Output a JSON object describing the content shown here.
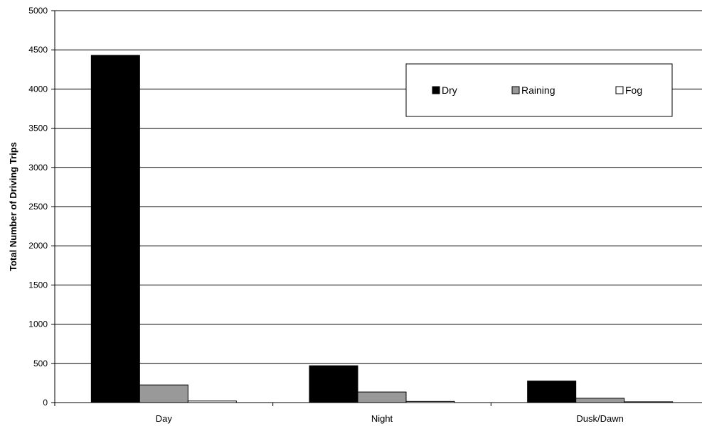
{
  "chart_data": {
    "type": "bar",
    "title": "",
    "xlabel": "",
    "ylabel": "Total Number of Driving Trips",
    "categories": [
      "Day",
      "Night",
      "Dusk/Dawn"
    ],
    "series": [
      {
        "name": "Dry",
        "values": [
          4430,
          470,
          275
        ],
        "color": "#000000"
      },
      {
        "name": "Raining",
        "values": [
          225,
          135,
          55
        ],
        "color": "#999999"
      },
      {
        "name": "Fog",
        "values": [
          20,
          15,
          10
        ],
        "color": "#ffffff"
      }
    ],
    "ylim": [
      0,
      5000
    ],
    "yticks": [
      0,
      500,
      1000,
      1500,
      2000,
      2500,
      3000,
      3500,
      4000,
      4500,
      5000
    ],
    "grid": true,
    "legend": "top-right"
  }
}
